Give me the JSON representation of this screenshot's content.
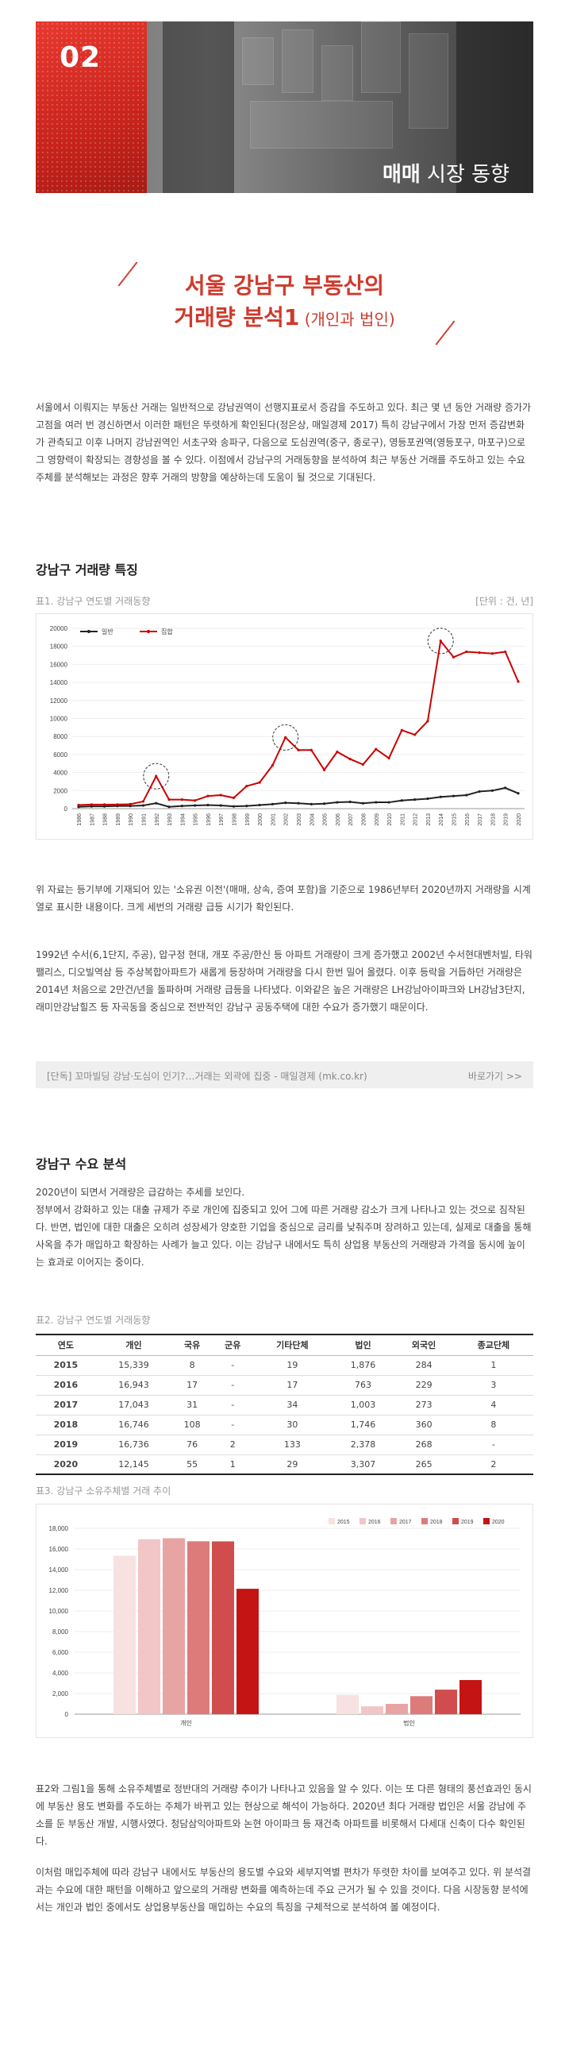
{
  "banner": {
    "number": "02",
    "title_bold": "매매",
    "title_rest": " 시장 동향"
  },
  "heading": {
    "line1": "서울 강남구 부동산의",
    "line2_main": "거래량 분석1",
    "line2_sub": " (개인과 법인)"
  },
  "intro": "서울에서 이뤄지는 부동산 거래는 일반적으로 강남권역이 선행지표로서 증감을 주도하고 있다. 최근 몇 년 동안 거래량 증가가 고점을 여러 번 경신하면서 이러한 패턴은 뚜렷하게 확인된다(정은상, 매일경제 2017) 특히 강남구에서 가장 먼저 증감변화가 관측되고 이후 나머지 강남권역인 서초구와 송파구, 다음으로 도심권역(중구, 종로구), 영등포권역(영등포구, 마포구)으로 그 영향력이 확장되는 경향성을 볼 수 있다. 이점에서 강남구의 거래동향을 분석하여 최근 부동산 거래를 주도하고 있는 수요 주체를 분석해보는 과정은 향후 거래의 방향을 예상하는데 도움이 될 것으로 기대된다.",
  "section1": {
    "title": "강남구 거래량 특징",
    "caption": "표1. 강남구 연도별 거래동향",
    "unit": "[단위 : 건, 년]",
    "para1": "위 자료는 등기부에 기재되어 있는 '소유권 이전'(매매, 상속, 증여 포함)을 기준으로 1986년부터 2020년까지 거래량을 시계열로 표시한 내용이다. 크게 세번의 거래량 급등 시기가 확인된다.",
    "para2": "1992년 수서(6,1단지, 주공), 압구정 현대, 개포 주공/한신 등 아파트 거래량이 크게 증가했고 2002년 수서현대벤처빌, 타워팰리스, 디오빌역삼 등 주상복합아파트가 새롭게 등장하며 거래량을 다시 한번 밀어 올렸다. 이후 등락을 거듭하던 거래량은 2014년 처음으로 2만건/년을 돌파하며 거래량 급등을 나타냈다. 이와같은 높은 거래량은 LH강남아이파크와 LH강남3단지, 래미안강남힐즈 등 자곡동을 중심으로 전반적인 강남구 공동주택에 대한 수요가 증가했기 때문이다.",
    "link_text": "[단독] 꼬마빌딩 강남·도심이 인기?…거래는 외곽에 집중 - 매일경제 (mk.co.kr)",
    "link_go": "바로가기 >>"
  },
  "section2": {
    "title": "강남구 수요 분석",
    "para1": "2020년이 되면서 거래량은 급감하는 추세를 보인다.\n정부에서 강화하고 있는 대출 규제가 주로 개인에 집중되고 있어 그에 따른 거래량 감소가 크게 나타나고 있는 것으로 짐작된다. 반면, 법인에 대한 대출은 오히려 성장세가 양호한 기업을 중심으로 금리를 낮춰주며 장려하고 있는데, 실제로 대출을 통해 사옥을 추가 매입하고 확장하는 사례가 늘고 있다. 이는 강남구 내에서도 특히 상업용 부동산의 거래량과 가격을 동시에 높이는 효과로 이어지는 중이다.",
    "table_caption": "표2. 강남구 연도별 거래동향",
    "chart_caption": "표3. 강남구 소유주체별 거래 추이",
    "para2": "표2와 그림1을 통해 소유주체별로 정반대의 거래량 추이가 나타나고 있음을 알 수 있다. 이는 또 다른 형태의 풍선효과인 동시에 부동산 용도 변화를 주도하는 주체가 바뀌고 있는 현상으로 해석이 가능하다. 2020년 최다 거래량 법인은 서울 강남에 주소를 둔 부동산 개발, 시행사였다. 청담삼익아파트와 논현 아이파크 등 재건축 아파트를 비롯해서 다세대 신축이 다수 확인된다.",
    "para3": "이처럼 매입주체에 따라 강남구 내에서도 부동산의 용도별 수요와 세부지역별 편차가 뚜렷한 차이를 보여주고 있다. 위 분석결과는 수요에 대한 패턴을 이해하고 앞으로의 거래량 변화를 예측하는데 주요 근거가 될 수 있을 것이다. 다음 시장동향 분석에서는 개인과 법인 중에서도 상업용부동산을 매입하는 수요의 특징을 구체적으로 분석하여 볼 예정이다."
  },
  "table": {
    "headers": [
      "연도",
      "개인",
      "국유",
      "군유",
      "기타단체",
      "법인",
      "외국인",
      "종교단체"
    ],
    "rows": [
      [
        "2015",
        "15,339",
        "8",
        "-",
        "19",
        "1,876",
        "284",
        "1"
      ],
      [
        "2016",
        "16,943",
        "17",
        "-",
        "17",
        "763",
        "229",
        "3"
      ],
      [
        "2017",
        "17,043",
        "31",
        "-",
        "34",
        "1,003",
        "273",
        "4"
      ],
      [
        "2018",
        "16,746",
        "108",
        "-",
        "30",
        "1,746",
        "360",
        "8"
      ],
      [
        "2019",
        "16,736",
        "76",
        "2",
        "133",
        "2,378",
        "268",
        "-"
      ],
      [
        "2020",
        "12,145",
        "55",
        "1",
        "29",
        "3,307",
        "265",
        "2"
      ]
    ]
  },
  "chart_data": [
    {
      "type": "line",
      "x": [
        "1986",
        "1987",
        "1988",
        "1989",
        "1990",
        "1991",
        "1992",
        "1993",
        "1994",
        "1995",
        "1996",
        "1997",
        "1998",
        "1999",
        "2000",
        "2001",
        "2002",
        "2003",
        "2004",
        "2005",
        "2006",
        "2007",
        "2008",
        "2009",
        "2010",
        "2011",
        "2012",
        "2013",
        "2014",
        "2015",
        "2016",
        "2017",
        "2018",
        "2019",
        "2020"
      ],
      "series": [
        {
          "name": "일반",
          "color": "#222222",
          "values": [
            200,
            250,
            250,
            300,
            300,
            350,
            600,
            200,
            300,
            350,
            400,
            350,
            250,
            300,
            400,
            500,
            650,
            600,
            500,
            550,
            700,
            750,
            600,
            700,
            700,
            900,
            1000,
            1100,
            1300,
            1400,
            1500,
            1900,
            2000,
            2300,
            1700
          ]
        },
        {
          "name": "집합",
          "color": "#cc0000",
          "values": [
            400,
            450,
            450,
            450,
            500,
            800,
            3600,
            1000,
            1000,
            900,
            1400,
            1500,
            1200,
            2500,
            2900,
            4800,
            7900,
            6500,
            6500,
            4300,
            6300,
            5500,
            4900,
            6600,
            5600,
            8700,
            8200,
            9700,
            18600,
            16800,
            17400,
            17300,
            17200,
            17400,
            14100
          ]
        }
      ],
      "ylim": [
        0,
        20000
      ],
      "yticks": [
        0,
        2000,
        4000,
        6000,
        8000,
        10000,
        12000,
        14000,
        16000,
        18000,
        20000
      ],
      "highlights": [
        "1992",
        "2002",
        "2014"
      ],
      "legend": "top-left"
    },
    {
      "type": "bar",
      "categories": [
        "개인",
        "법인"
      ],
      "series": [
        {
          "name": "2015",
          "color": "#f8e1e1",
          "values": [
            15339,
            1876
          ]
        },
        {
          "name": "2016",
          "color": "#f2c6c6",
          "values": [
            16943,
            763
          ]
        },
        {
          "name": "2017",
          "color": "#e8a3a3",
          "values": [
            17043,
            1003
          ]
        },
        {
          "name": "2018",
          "color": "#dd7b7b",
          "values": [
            16746,
            1746
          ]
        },
        {
          "name": "2019",
          "color": "#d14d4d",
          "values": [
            16736,
            2378
          ]
        },
        {
          "name": "2020",
          "color": "#c41414",
          "values": [
            12145,
            3307
          ]
        }
      ],
      "ylim": [
        0,
        18000
      ],
      "yticks": [
        0,
        2000,
        4000,
        6000,
        8000,
        10000,
        12000,
        14000,
        16000,
        18000
      ],
      "legend": "top-right"
    }
  ]
}
